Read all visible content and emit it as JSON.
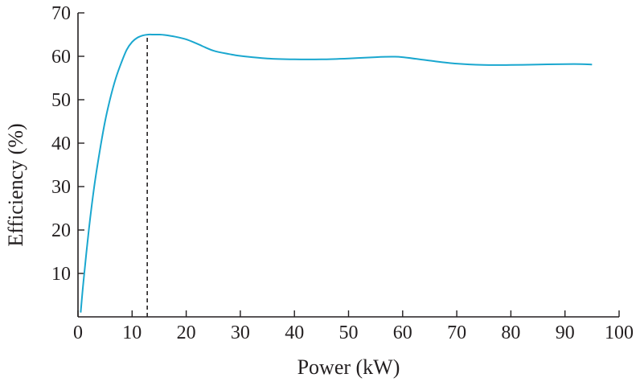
{
  "chart_data": {
    "type": "line",
    "title": "",
    "xlabel": "Power (kW)",
    "ylabel": "Efficiency (%)",
    "xlim": [
      0,
      100
    ],
    "ylim": [
      0,
      70
    ],
    "xticks": [
      0,
      10,
      20,
      30,
      40,
      50,
      60,
      70,
      80,
      90,
      100
    ],
    "yticks": [
      10,
      20,
      30,
      40,
      50,
      60,
      70
    ],
    "grid": false,
    "legend": "none",
    "series": [
      {
        "color": "#1aa7cf",
        "x": [
          0.5,
          1,
          2,
          3,
          4,
          5,
          6,
          7,
          8,
          9,
          10,
          11,
          12,
          13,
          14,
          15,
          16,
          18,
          20,
          22,
          25,
          28,
          30,
          35,
          40,
          45,
          50,
          55,
          58,
          60,
          65,
          70,
          75,
          80,
          85,
          90,
          93,
          95
        ],
        "y": [
          1,
          8,
          20,
          30,
          38,
          45,
          50.5,
          55,
          58.5,
          61.5,
          63.3,
          64.3,
          64.8,
          65,
          65,
          65,
          64.9,
          64.5,
          63.9,
          62.9,
          61.3,
          60.5,
          60.1,
          59.5,
          59.3,
          59.3,
          59.5,
          59.8,
          59.9,
          59.8,
          59,
          58.3,
          58,
          58,
          58.1,
          58.2,
          58.2,
          58.1
        ]
      }
    ],
    "annotations": [
      {
        "type": "vertical-dashed-line",
        "x": 12.8,
        "y_from": 0,
        "y_to": 65,
        "color": "#231f20"
      }
    ]
  }
}
